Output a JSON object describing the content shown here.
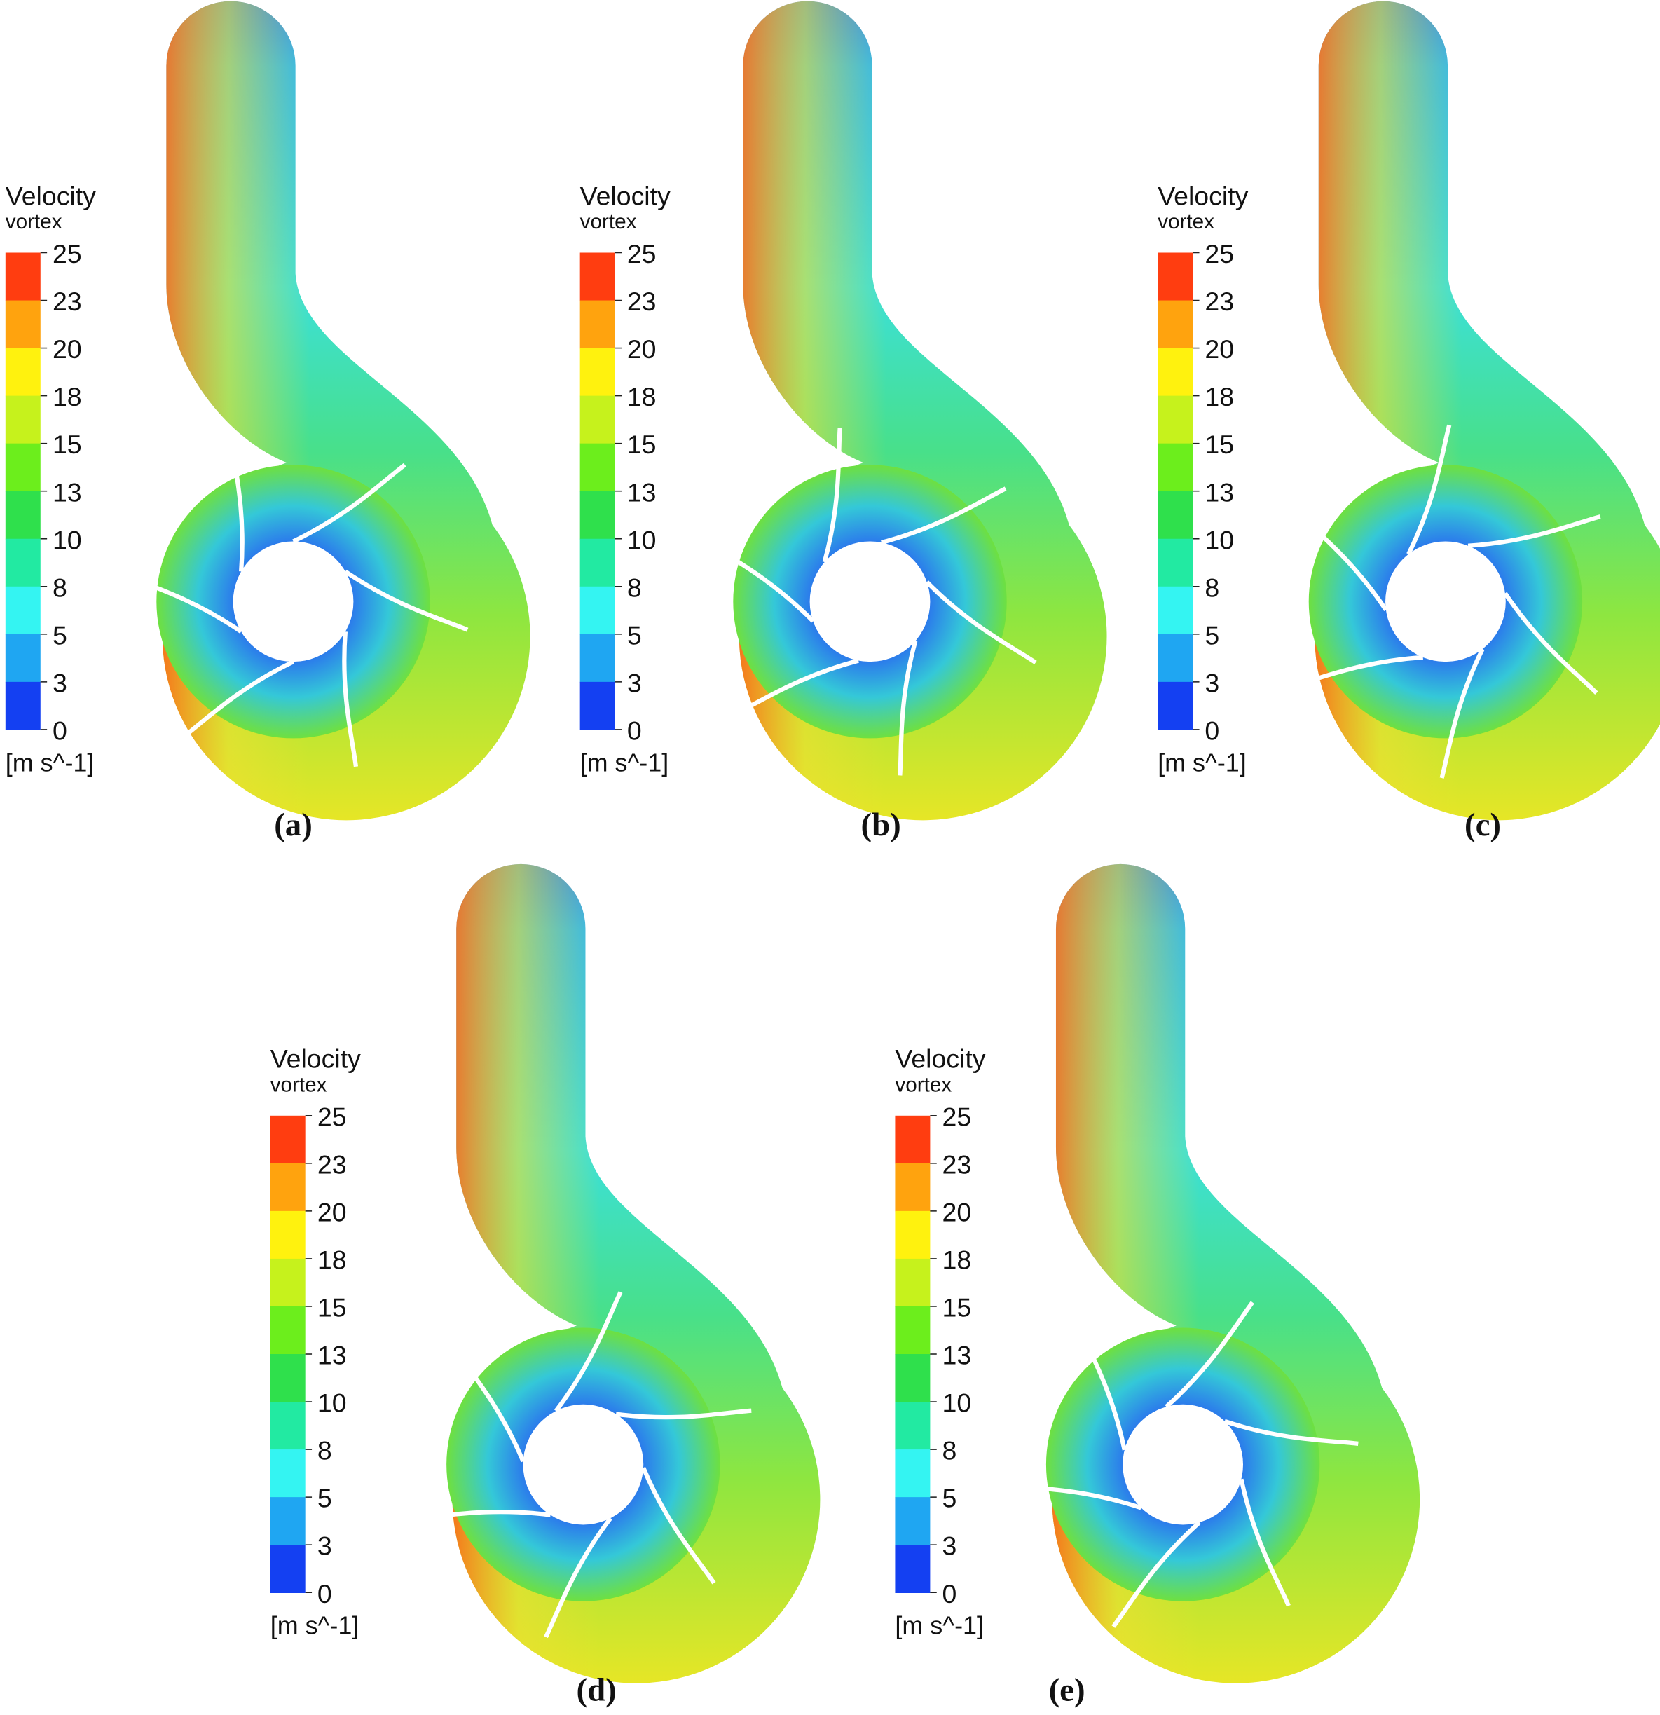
{
  "legend": {
    "title": "Velocity",
    "subtitle": "vortex",
    "ticks": [
      25,
      23,
      20,
      18,
      15,
      13,
      10,
      8,
      5,
      3,
      0
    ],
    "unit": "[m s^-1]",
    "colors": [
      "#ff3d10",
      "#ffa30e",
      "#fff20e",
      "#c6f21c",
      "#6cee1c",
      "#2fe04c",
      "#22eaa2",
      "#34f4f2",
      "#1fa6f2",
      "#1440f2"
    ]
  },
  "panels": [
    {
      "label": "(a)"
    },
    {
      "label": "(b)"
    },
    {
      "label": "(c)"
    },
    {
      "label": "(d)"
    },
    {
      "label": "(e)"
    }
  ]
}
